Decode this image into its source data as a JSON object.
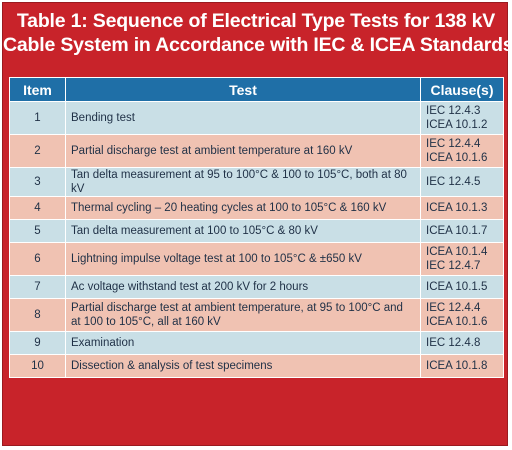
{
  "title": {
    "line1": "Table 1: Sequence of Electrical Type Tests for 138 kV",
    "line2": "Cable System in Accordance with IEC & ICEA Standards"
  },
  "columns": {
    "item": "Item",
    "test": "Test",
    "clause": "Clause(s)"
  },
  "rows": [
    {
      "item": "1",
      "test": "Bending test",
      "clauses": [
        "IEC 12.4.3",
        "ICEA 10.1.2"
      ]
    },
    {
      "item": "2",
      "test": "Partial discharge test at ambient temperature at 160 kV",
      "clauses": [
        "IEC 12.4.4",
        "ICEA 10.1.6"
      ]
    },
    {
      "item": "3",
      "test": "Tan delta measurement at 95 to 100°C & 100 to 105°C, both at 80 kV",
      "clauses": [
        "IEC 12.4.5"
      ]
    },
    {
      "item": "4",
      "test": "Thermal cycling – 20 heating cycles at 100 to 105°C & 160 kV",
      "clauses": [
        "ICEA 10.1.3"
      ]
    },
    {
      "item": "5",
      "test": "Tan delta measurement at 100 to 105°C & 80 kV",
      "clauses": [
        "ICEA 10.1.7"
      ]
    },
    {
      "item": "6",
      "test": "Lightning impulse voltage test at 100 to 105°C & ±650 kV",
      "clauses": [
        "ICEA 10.1.4",
        "IEC 12.4.7"
      ]
    },
    {
      "item": "7",
      "test": "Ac voltage withstand test at 200 kV for 2 hours",
      "clauses": [
        "ICEA 10.1.5"
      ]
    },
    {
      "item": "8",
      "test": "Partial discharge test at ambient temperature, at 95 to 100°C and at 100 to 105°C, all at 160 kV",
      "clauses": [
        "IEC 12.4.4",
        "ICEA 10.1.6"
      ]
    },
    {
      "item": "9",
      "test": "Examination",
      "clauses": [
        "IEC 12.4.8"
      ]
    },
    {
      "item": "10",
      "test": "Dissection & analysis of test specimens",
      "clauses": [
        "ICEA 10.1.8"
      ]
    }
  ],
  "colors": {
    "frame": "#c8232a",
    "header": "#1f6fa7",
    "row_blue": "#c9dfe6",
    "row_pink": "#f0c2b2"
  }
}
